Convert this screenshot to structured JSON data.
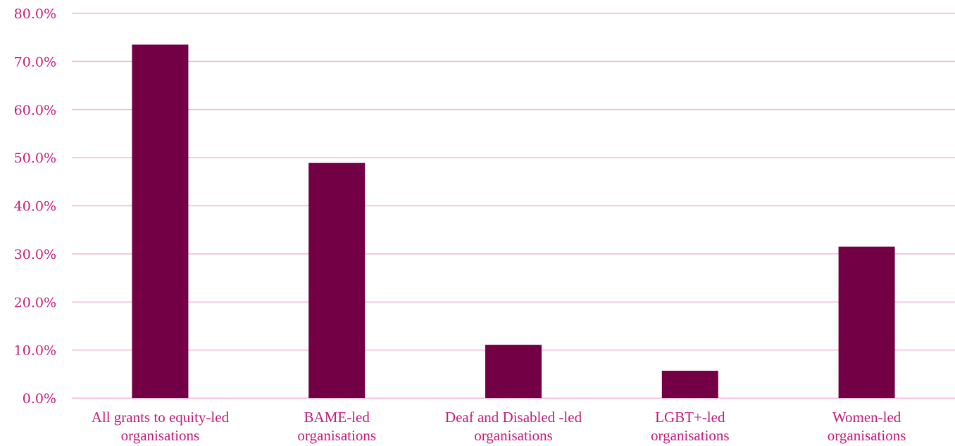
{
  "chart_data": {
    "type": "bar",
    "title": "",
    "xlabel": "",
    "ylabel": "",
    "ylim": [
      0,
      80
    ],
    "y_ticks": [
      "0.0%",
      "10.0%",
      "20.0%",
      "30.0%",
      "40.0%",
      "50.0%",
      "60.0%",
      "70.0%",
      "80.0%"
    ],
    "grid": true,
    "legend": "none",
    "bar_color": "#730045",
    "text_color": "#c4197a",
    "grid_color": "#f5b6d8",
    "categories": [
      [
        "All grants to equity-led",
        "organisations"
      ],
      [
        "BAME-led",
        "organisations"
      ],
      [
        "Deaf and Disabled -led",
        "organisations"
      ],
      [
        "LGBT+-led",
        "organisations"
      ],
      [
        "Women-led",
        "organisations"
      ]
    ],
    "values": [
      73.5,
      48.9,
      11.1,
      5.7,
      31.5
    ]
  }
}
